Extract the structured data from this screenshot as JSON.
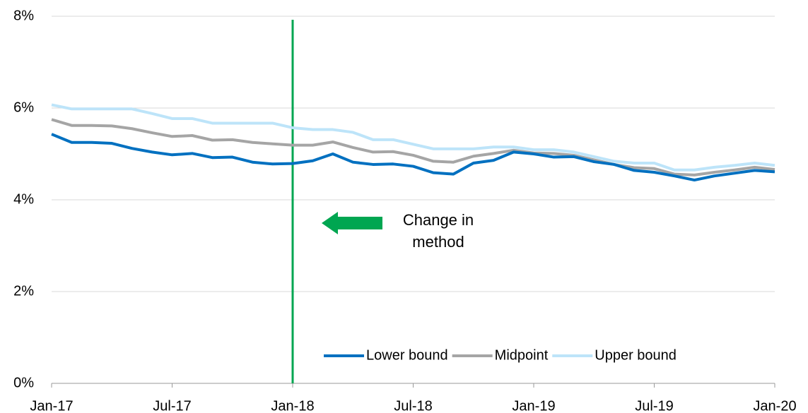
{
  "chart_data": {
    "type": "line",
    "categories": [
      "Jan-17",
      null,
      null,
      null,
      null,
      null,
      "Jul-17",
      null,
      null,
      null,
      null,
      null,
      "Jan-18",
      null,
      null,
      null,
      null,
      null,
      "Jul-18",
      null,
      null,
      null,
      null,
      null,
      "Jan-19",
      null,
      null,
      null,
      null,
      null,
      "Jul-19",
      null,
      null,
      null,
      null,
      null,
      "Jan-20"
    ],
    "series": [
      {
        "name": "Lower bound",
        "color": "#0070c0",
        "values": [
          5.43,
          5.25,
          5.25,
          5.23,
          5.12,
          5.04,
          4.98,
          5.01,
          4.92,
          4.93,
          4.82,
          4.78,
          4.79,
          4.85,
          5.0,
          4.82,
          4.77,
          4.78,
          4.73,
          4.59,
          4.56,
          4.8,
          4.86,
          5.04,
          5.0,
          4.93,
          4.94,
          4.83,
          4.77,
          4.64,
          4.6,
          4.52,
          4.43,
          4.52,
          4.58,
          4.64,
          4.61
        ]
      },
      {
        "name": "Midpoint",
        "color": "#a5a5a5",
        "values": [
          5.75,
          5.62,
          5.62,
          5.61,
          5.55,
          5.46,
          5.38,
          5.4,
          5.3,
          5.31,
          5.25,
          5.22,
          5.19,
          5.19,
          5.26,
          5.14,
          5.04,
          5.05,
          4.97,
          4.84,
          4.82,
          4.95,
          5.01,
          5.08,
          5.02,
          5.01,
          4.97,
          4.87,
          4.77,
          4.7,
          4.68,
          4.56,
          4.54,
          4.6,
          4.65,
          4.71,
          4.66
        ]
      },
      {
        "name": "Upper bound",
        "color": "#bde4f9",
        "values": [
          6.07,
          5.98,
          5.98,
          5.98,
          5.98,
          5.88,
          5.77,
          5.77,
          5.67,
          5.67,
          5.67,
          5.67,
          5.57,
          5.53,
          5.53,
          5.47,
          5.31,
          5.31,
          5.21,
          5.11,
          5.11,
          5.11,
          5.15,
          5.15,
          5.09,
          5.09,
          5.04,
          4.94,
          4.84,
          4.8,
          4.8,
          4.65,
          4.65,
          4.71,
          4.75,
          4.8,
          4.75
        ]
      }
    ],
    "ylim": [
      0,
      8
    ],
    "yticks": [
      {
        "value": 0,
        "label": "0%"
      },
      {
        "value": 2,
        "label": "2%"
      },
      {
        "value": 4,
        "label": "4%"
      },
      {
        "value": 6,
        "label": "6%"
      },
      {
        "value": 8,
        "label": "8%"
      }
    ],
    "grid": true,
    "legend": "lower right",
    "annotation": {
      "text": "Change in method",
      "at": "Jan-18",
      "color": "#00a651"
    }
  }
}
